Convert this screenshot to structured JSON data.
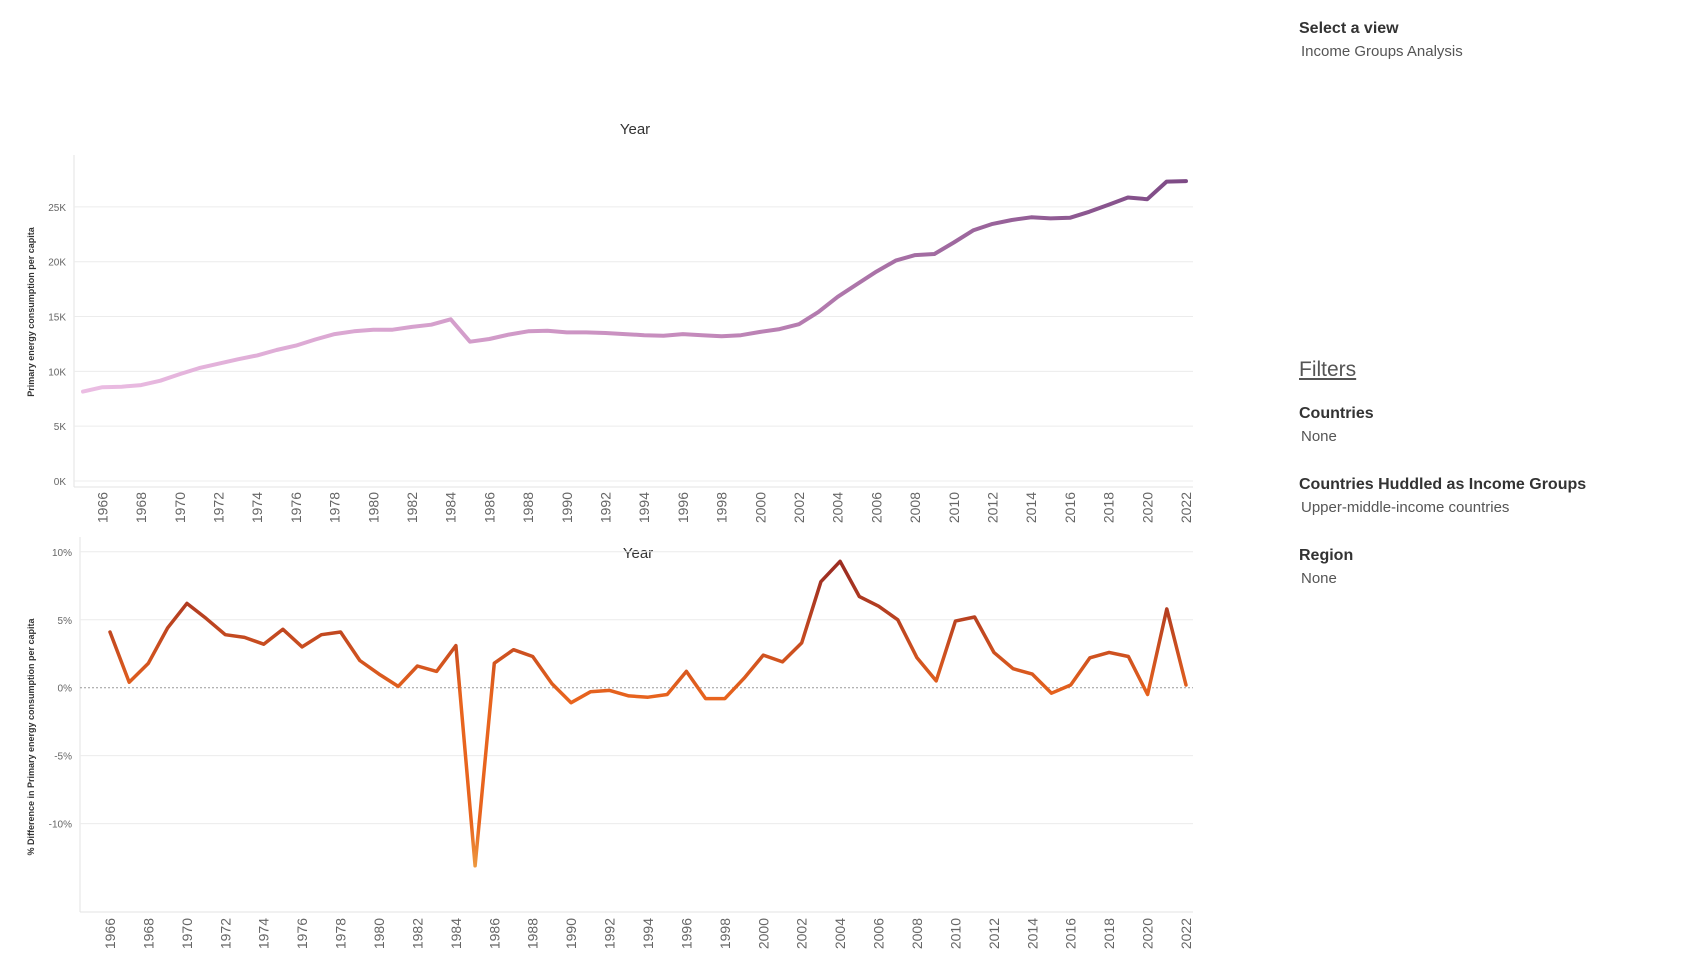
{
  "view_selector": {
    "title": "Select a view",
    "value": "Income Groups Analysis"
  },
  "filters": {
    "title": "Filters",
    "countries": {
      "label": "Countries",
      "value": "None"
    },
    "income_groups": {
      "label": "Countries Huddled as Income Groups",
      "value": "Upper-middle-income countries"
    },
    "region": {
      "label": "Region",
      "value": "None"
    }
  },
  "chart_data": [
    {
      "type": "line",
      "title": "Year",
      "ylabel": "Primary energy consumption per capita",
      "ylim": [
        0,
        29000
      ],
      "yticks": [
        0,
        5000,
        10000,
        15000,
        20000,
        25000
      ],
      "yticklabels": [
        "0K",
        "5K",
        "10K",
        "15K",
        "20K",
        "25K"
      ],
      "xticks": [
        1966,
        1968,
        1970,
        1972,
        1974,
        1976,
        1978,
        1980,
        1982,
        1984,
        1986,
        1988,
        1990,
        1992,
        1994,
        1996,
        1998,
        2000,
        2002,
        2004,
        2006,
        2008,
        2010,
        2012,
        2014,
        2016,
        2018,
        2020,
        2022
      ],
      "x": [
        1965,
        1966,
        1967,
        1968,
        1969,
        1970,
        1971,
        1972,
        1973,
        1974,
        1975,
        1976,
        1977,
        1978,
        1979,
        1980,
        1981,
        1982,
        1983,
        1984,
        1985,
        1986,
        1987,
        1988,
        1989,
        1990,
        1991,
        1992,
        1993,
        1994,
        1995,
        1996,
        1997,
        1998,
        1999,
        2000,
        2001,
        2002,
        2003,
        2004,
        2005,
        2006,
        2007,
        2008,
        2009,
        2010,
        2011,
        2012,
        2013,
        2014,
        2015,
        2016,
        2017,
        2018,
        2019,
        2020,
        2021,
        2022
      ],
      "values": [
        8150,
        8550,
        8600,
        8750,
        9150,
        9750,
        10300,
        10700,
        11100,
        11450,
        11950,
        12350,
        12900,
        13400,
        13650,
        13800,
        13800,
        14050,
        14250,
        14750,
        12700,
        12950,
        13350,
        13650,
        13700,
        13550,
        13550,
        13500,
        13400,
        13300,
        13250,
        13400,
        13300,
        13200,
        13300,
        13600,
        13850,
        14300,
        15400,
        16800,
        17950,
        19100,
        20100,
        20600,
        20700,
        21750,
        22850,
        23450,
        23800,
        24050,
        23950,
        24000,
        24550,
        25200,
        25850,
        25700,
        27300,
        27350
      ],
      "colors": {
        "light": "#ebbde3",
        "mid": "#c58bbc",
        "dark": "#7d4a85"
      }
    },
    {
      "type": "line",
      "title": "Year",
      "ylabel": "% Difference in Primary energy consumption per capita",
      "ylim": [
        -14,
        10.5
      ],
      "yticks": [
        -10,
        -5,
        0,
        5,
        10
      ],
      "yticklabels": [
        "-10%",
        "-5%",
        "0%",
        "5%",
        "10%"
      ],
      "xticks": [
        1966,
        1968,
        1970,
        1972,
        1974,
        1976,
        1978,
        1980,
        1982,
        1984,
        1986,
        1988,
        1990,
        1992,
        1994,
        1996,
        1998,
        2000,
        2002,
        2004,
        2006,
        2008,
        2010,
        2012,
        2014,
        2016,
        2018,
        2020,
        2022
      ],
      "x": [
        1966,
        1967,
        1968,
        1969,
        1970,
        1971,
        1972,
        1973,
        1974,
        1975,
        1976,
        1977,
        1978,
        1979,
        1980,
        1981,
        1982,
        1983,
        1984,
        1985,
        1986,
        1987,
        1988,
        1989,
        1990,
        1991,
        1992,
        1993,
        1994,
        1995,
        1996,
        1997,
        1998,
        1999,
        2000,
        2001,
        2002,
        2003,
        2004,
        2005,
        2006,
        2007,
        2008,
        2009,
        2010,
        2011,
        2012,
        2013,
        2014,
        2015,
        2016,
        2017,
        2018,
        2019,
        2020,
        2021,
        2022
      ],
      "values": [
        4.1,
        0.4,
        1.8,
        4.4,
        6.2,
        5.1,
        3.9,
        3.7,
        3.2,
        4.3,
        3.0,
        3.9,
        4.1,
        2.0,
        1.0,
        0.1,
        1.6,
        1.2,
        3.1,
        -13.1,
        1.8,
        2.8,
        2.3,
        0.3,
        -1.1,
        -0.3,
        -0.2,
        -0.6,
        -0.7,
        -0.5,
        1.2,
        -0.8,
        -0.8,
        0.7,
        2.4,
        1.9,
        3.3,
        7.8,
        9.3,
        6.7,
        6.0,
        5.0,
        2.2,
        0.5,
        4.9,
        5.2,
        2.6,
        1.4,
        1.0,
        -0.4,
        0.2,
        2.2,
        2.6,
        2.3,
        -0.5,
        5.8,
        0.2
      ],
      "colors": {
        "low": "#f2c45a",
        "mid": "#e8641e",
        "high": "#9e2e22",
        "zero_line": "#9a9a9a"
      }
    }
  ]
}
